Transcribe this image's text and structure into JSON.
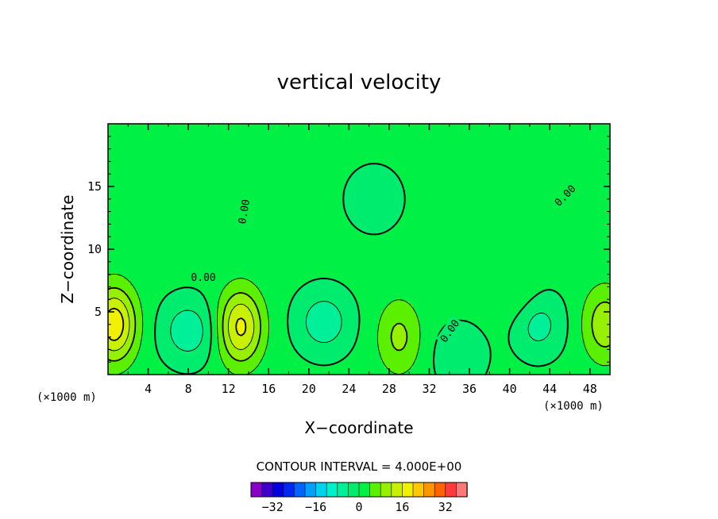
{
  "chart_data": {
    "type": "heatmap",
    "title": "vertical velocity",
    "xlabel": "X−coordinate",
    "ylabel": "Z−coordinate",
    "x_unit_label": "(×1000 m)",
    "y_unit_label": "(×1000 m)",
    "xlim": [
      0,
      50
    ],
    "ylim": [
      0,
      20
    ],
    "x_ticks": [
      4,
      8,
      12,
      16,
      20,
      24,
      28,
      32,
      36,
      40,
      44,
      48
    ],
    "y_ticks": [
      5,
      10,
      15
    ],
    "contour_interval_text": "CONTOUR INTERVAL = 4.000E+00",
    "contour_labels": [
      {
        "text": "0.00",
        "x": 13.5,
        "y": 13.0,
        "angle": -80
      },
      {
        "text": "0.00",
        "x": 9.5,
        "y": 7.8,
        "angle": 0
      },
      {
        "text": "0.00",
        "x": 45.5,
        "y": 14.3,
        "angle": -45
      },
      {
        "text": "0.00",
        "x": 34.0,
        "y": 3.5,
        "angle": -55
      }
    ],
    "colorbar": {
      "ticks": [
        -32,
        -16,
        0,
        16,
        32
      ],
      "tick_labels": [
        "−32",
        "−16",
        "0",
        "16",
        "32"
      ],
      "levels": [
        -40,
        -36,
        -32,
        -28,
        -24,
        -20,
        -16,
        -12,
        -8,
        -4,
        0,
        4,
        8,
        12,
        16,
        20,
        24,
        28,
        32,
        36,
        40
      ],
      "colors": [
        "#8a00c8",
        "#3c00c8",
        "#0000dc",
        "#0028f0",
        "#0064ff",
        "#00a0ff",
        "#00d2f0",
        "#00f0c8",
        "#00f09a",
        "#00ec6e",
        "#00f046",
        "#5af000",
        "#96f000",
        "#c8f000",
        "#f0f000",
        "#ffc800",
        "#ff9600",
        "#ff6400",
        "#ff3c3c",
        "#ff7878"
      ]
    },
    "field_peaks": [
      {
        "value": 18,
        "x": 0.6,
        "y": 4.0,
        "note": "updraft"
      },
      {
        "value": 16,
        "x": 13.2,
        "y": 3.8,
        "note": "updraft"
      },
      {
        "value": 10,
        "x": 49.5,
        "y": 4.0,
        "note": "updraft"
      },
      {
        "value": 8,
        "x": 29.0,
        "y": 3.0,
        "note": "updraft"
      },
      {
        "value": -8,
        "x": 8.0,
        "y": 3.5,
        "note": "downdraft"
      },
      {
        "value": -8,
        "x": 21.5,
        "y": 4.2,
        "note": "downdraft"
      },
      {
        "value": -8,
        "x": 42.5,
        "y": 4.0,
        "note": "downdraft"
      },
      {
        "value": -4,
        "x": 35.0,
        "y": 1.5,
        "note": "downdraft"
      },
      {
        "value": -4,
        "x": 26.5,
        "y": 14.0,
        "note": "downdraft"
      },
      {
        "value": 4,
        "x": 41.0,
        "y": 5.5,
        "note": "updraft"
      }
    ]
  }
}
